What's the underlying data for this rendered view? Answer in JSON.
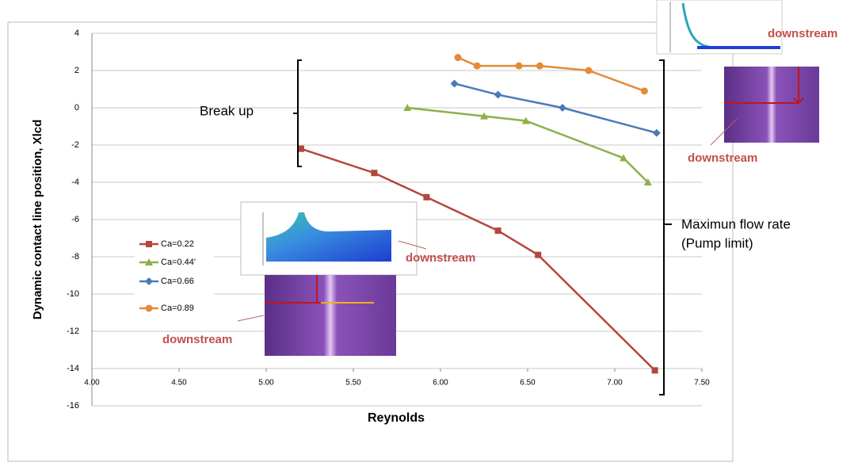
{
  "chart_data": {
    "type": "line",
    "x_label": "Reynolds",
    "y_label": "Dynamic contact line position, Xlcd",
    "xlim": [
      4.0,
      7.5
    ],
    "xticks": [
      {
        "value": 4.0,
        "label": "4.00"
      },
      {
        "value": 4.5,
        "label": "4.50"
      },
      {
        "value": 5.0,
        "label": "5.00"
      },
      {
        "value": 5.5,
        "label": "5.50"
      },
      {
        "value": 6.0,
        "label": "6.00"
      },
      {
        "value": 6.5,
        "label": "6.50"
      },
      {
        "value": 7.0,
        "label": "7.00"
      },
      {
        "value": 7.5,
        "label": "7.50"
      }
    ],
    "ylim": [
      -16,
      4
    ],
    "yticks": [
      -16,
      -14,
      -12,
      -10,
      -8,
      -6,
      -4,
      -2,
      0,
      2,
      4
    ],
    "grid": true,
    "series": [
      {
        "name": "Ca=0.22",
        "color": "#b5453e",
        "marker": "square",
        "x": [
          5.2,
          5.62,
          5.92,
          6.33,
          6.56,
          7.23
        ],
        "values": [
          -2.2,
          -3.5,
          -4.8,
          -6.6,
          -7.9,
          -14.1
        ]
      },
      {
        "name": "Ca=0.44'",
        "color": "#8db04a",
        "marker": "triangle",
        "x": [
          5.81,
          6.25,
          6.49,
          7.05,
          7.19
        ],
        "values": [
          0.0,
          -0.45,
          -0.7,
          -2.7,
          -4.0
        ]
      },
      {
        "name": "Ca=0.66",
        "color": "#4a7ab8",
        "marker": "diamond",
        "x": [
          6.08,
          6.33,
          6.7,
          7.24
        ],
        "values": [
          1.3,
          0.7,
          0.0,
          -1.35
        ]
      },
      {
        "name": "Ca=0.89",
        "color": "#e38a3b",
        "marker": "circle",
        "x": [
          6.1,
          6.21,
          6.45,
          6.57,
          6.85,
          7.17
        ],
        "values": [
          2.7,
          2.25,
          2.25,
          2.25,
          2.0,
          0.9
        ]
      }
    ],
    "annotations": [
      "Break up",
      "Maximun flow rate",
      "(Pump limit)",
      "downstream",
      "downstream",
      "downstream",
      "downstream"
    ]
  }
}
